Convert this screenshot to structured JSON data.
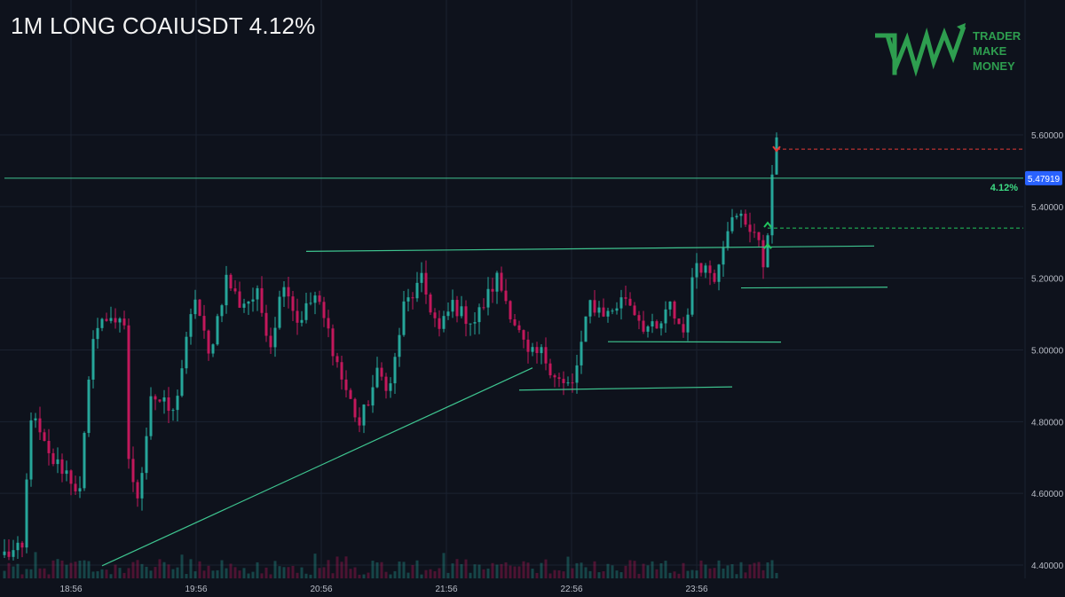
{
  "header": {
    "title": "1M LONG COAIUSDT 4.12%"
  },
  "brand": {
    "lines": [
      "TRADER",
      "MAKE",
      "MONEY"
    ],
    "color": "#2e9e4f"
  },
  "colors": {
    "background": "#0e121c",
    "up": "#26a69a",
    "down": "#c2185b",
    "grid": "#1b2230",
    "axis_text": "#b8bcc6",
    "current_price_bg": "#2962ff",
    "line": "#3ec48f",
    "entry_marker": "#22c55e",
    "exit_marker": "#e53935"
  },
  "chart_data": {
    "type": "candlestick",
    "symbol": "COAIUSDT",
    "timeframe": "1M",
    "x_tick_labels": [
      "18:56",
      "19:56",
      "20:56",
      "21:56",
      "22:56",
      "23:56"
    ],
    "y_tick_labels": [
      "5.60000",
      "5.40000",
      "5.20000",
      "5.00000",
      "4.80000",
      "4.60000",
      "4.40000"
    ],
    "ylim": [
      4.363,
      5.707
    ],
    "current_price": "5.47919",
    "current_price_value": 5.47919,
    "move_label": "4.12%",
    "price_path_anchors": [
      [
        0,
        4.43
      ],
      [
        4,
        4.44
      ],
      [
        6,
        4.82
      ],
      [
        10,
        4.7
      ],
      [
        14,
        4.66
      ],
      [
        17,
        4.6
      ],
      [
        20,
        5.05
      ],
      [
        24,
        5.1
      ],
      [
        27,
        5.05
      ],
      [
        28,
        4.7
      ],
      [
        30,
        4.57
      ],
      [
        33,
        4.88
      ],
      [
        38,
        4.82
      ],
      [
        43,
        5.15
      ],
      [
        46,
        4.98
      ],
      [
        50,
        5.2
      ],
      [
        53,
        5.13
      ],
      [
        57,
        5.15
      ],
      [
        60,
        5.02
      ],
      [
        63,
        5.2
      ],
      [
        66,
        5.08
      ],
      [
        70,
        5.15
      ],
      [
        73,
        5.05
      ],
      [
        76,
        4.92
      ],
      [
        80,
        4.79
      ],
      [
        84,
        4.93
      ],
      [
        87,
        4.9
      ],
      [
        90,
        5.12
      ],
      [
        94,
        5.19
      ],
      [
        98,
        5.05
      ],
      [
        101,
        5.13
      ],
      [
        103,
        5.1
      ],
      [
        106,
        5.08
      ],
      [
        111,
        5.2
      ],
      [
        114,
        5.11
      ],
      [
        118,
        4.98
      ],
      [
        121,
        4.99
      ],
      [
        126,
        4.9
      ],
      [
        128,
        4.9
      ],
      [
        132,
        5.13
      ],
      [
        136,
        5.1
      ],
      [
        140,
        5.15
      ],
      [
        144,
        5.07
      ],
      [
        147,
        5.05
      ],
      [
        150,
        5.12
      ],
      [
        153,
        5.05
      ],
      [
        156,
        5.25
      ],
      [
        160,
        5.21
      ],
      [
        163,
        5.35
      ],
      [
        166,
        5.37
      ],
      [
        169,
        5.33
      ],
      [
        171,
        5.24
      ],
      [
        172,
        5.34
      ],
      [
        173,
        5.47
      ],
      [
        174,
        5.6
      ]
    ],
    "markers": [
      {
        "type": "entry",
        "time_index": 172,
        "price": 5.35
      },
      {
        "type": "entry",
        "time_index": 172,
        "price": 5.29
      },
      {
        "type": "exit",
        "time_index": 174,
        "price": 5.56
      }
    ],
    "horizontal_levels": [
      {
        "price": 5.47919,
        "from_index": 0,
        "to_index": 232,
        "style": "solid"
      },
      {
        "price": 5.56,
        "from_index": 174,
        "to_index": 232,
        "style": "dashed",
        "color": "#e53935"
      },
      {
        "price": 5.34,
        "from_index": 172,
        "to_index": 232,
        "style": "dashed",
        "color": "#22c55e"
      }
    ],
    "drawn_lines": [
      {
        "from": [
          68,
          5.275
        ],
        "to": [
          196,
          5.29
        ]
      },
      {
        "from": [
          136,
          5.023
        ],
        "to": [
          175,
          5.022
        ]
      },
      {
        "from": [
          116,
          4.888
        ],
        "to": [
          164,
          4.897
        ]
      },
      {
        "from": [
          166,
          5.173
        ],
        "to": [
          199,
          5.175
        ]
      },
      {
        "from": [
          22,
          4.398
        ],
        "to": [
          119,
          4.95
        ]
      }
    ]
  }
}
